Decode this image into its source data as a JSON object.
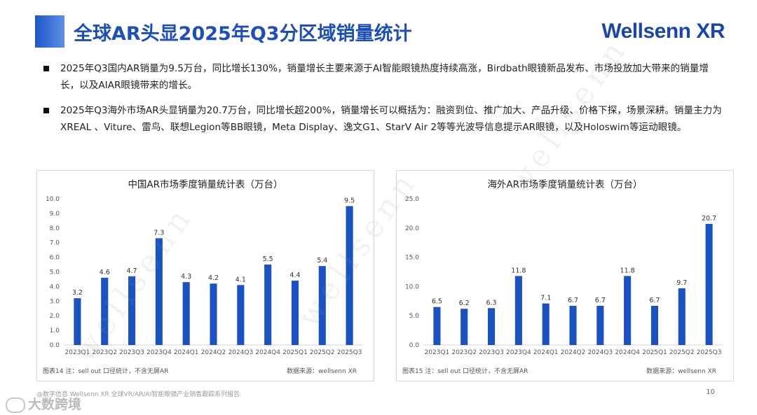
{
  "header": {
    "title": "全球AR头显2025年Q3分区域销量统计",
    "brand": "Wellsenn XR"
  },
  "bullets": [
    "2025年Q3国内AR销量为9.5万台，同比增长130%，销量增长主要来源于AI智能眼镜热度持续高涨，Birdbath眼镜新品发布、市场投放加大带来的销量增长，以及AIAR眼镜带来的增长。",
    "2025年Q3海外市场AR头显销量为20.7万台，同比增长超200%，销量增长可以概括为：融资到位、推广加大、产品升级、价格下探，场景深耕。销量主力为XREAL 、Viture、雷鸟、联想Legion等BB眼镜，Meta Display、逸文G1、StarV Air 2等等光波导信息提示AR眼镜，以及Holoswim等运动眼镜。"
  ],
  "chart_data": [
    {
      "type": "bar",
      "title": "中国AR市场季度销量统计表（万台）",
      "categories": [
        "2023Q1",
        "2023Q2",
        "2023Q3",
        "2023Q4",
        "2024Q1",
        "2024Q2",
        "2024Q3",
        "2024Q4",
        "2025Q1",
        "2025Q2",
        "2025Q3"
      ],
      "values": [
        3.2,
        4.6,
        4.7,
        7.3,
        4.3,
        4.2,
        4.1,
        5.5,
        4.4,
        5.4,
        9.5
      ],
      "value_labels": [
        "3.2",
        "4.6",
        "4.7",
        "7.3",
        "4.3",
        "4.2",
        "4.1",
        "5.5",
        "4.4",
        "5.4",
        "9.5"
      ],
      "ylim": [
        0,
        10
      ],
      "yticks": [
        "0.0",
        "1.0",
        "2.0",
        "3.0",
        "4.0",
        "5.0",
        "6.0",
        "7.0",
        "8.0",
        "9.0",
        "10.0"
      ],
      "xlabel": "",
      "ylabel": "",
      "color": "#1a52c4",
      "grid": false,
      "note": "图表14  注：sell out 口径统计，不含无屏AR",
      "source": "数据来源：wellsenn XR"
    },
    {
      "type": "bar",
      "title": "海外AR市场季度销量统计表（万台）",
      "categories": [
        "2023Q1",
        "2023Q2",
        "2023Q3",
        "2023Q4",
        "2024Q1",
        "2024Q2",
        "2024Q3",
        "2024Q4",
        "2025Q1",
        "2025Q2",
        "2025Q3"
      ],
      "values": [
        6.5,
        6.2,
        6.3,
        11.8,
        7.1,
        6.7,
        6.7,
        11.8,
        6.7,
        9.7,
        20.7
      ],
      "value_labels": [
        "6.5",
        "6.2",
        "6.3",
        "11.8",
        "7.1",
        "6.7",
        "6.7",
        "11.8",
        "6.7",
        "9.7",
        "20.7"
      ],
      "ylim": [
        0,
        25
      ],
      "yticks": [
        "0.0",
        "5.0",
        "10.0",
        "15.0",
        "20.0",
        "25.0"
      ],
      "xlabel": "",
      "ylabel": "",
      "color": "#1a52c4",
      "grid": false,
      "note": "图表15  注：sell out 口径统计，不含无屏AR",
      "source": "数据来源：wellsenn XR"
    }
  ],
  "footer": {
    "text": "@数字信息 Wellsenn XR 全球VR/AR/AI智能眼镜产业销售跟踪系列报告",
    "page": "10",
    "watermark_logo": "大数跨境"
  },
  "watermark": "wellsenn"
}
